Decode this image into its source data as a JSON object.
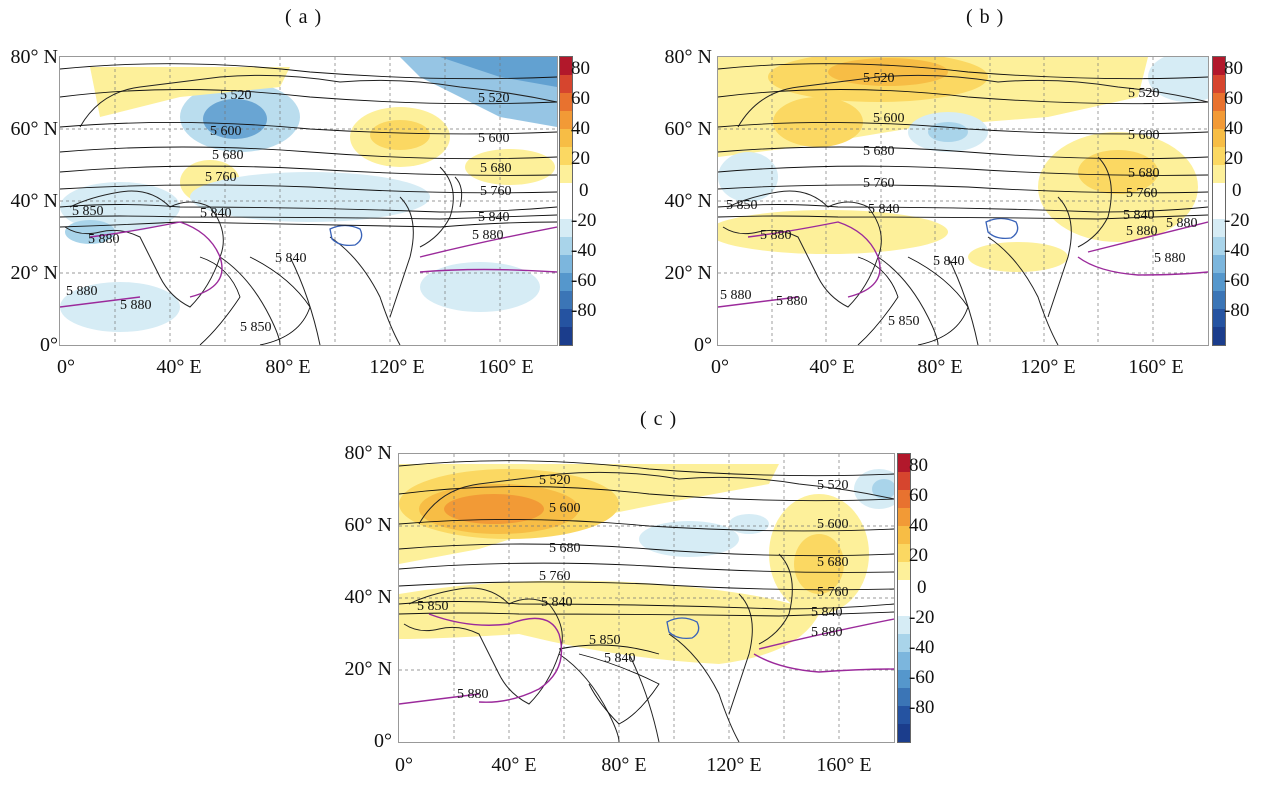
{
  "panels": [
    {
      "label": "( a )",
      "lat_labels": [
        "80° N",
        "60° N",
        "40° N",
        "20° N",
        "0°"
      ],
      "lon_labels": [
        "0°",
        "40° E",
        "80° E",
        "120° E",
        "160° E"
      ],
      "contour_labels": [
        "5 520",
        "5 520",
        "5 600",
        "5 600",
        "5 680",
        "5 680",
        "5 760",
        "5 760",
        "5 850",
        "5 840",
        "5 840",
        "5 880",
        "5 880",
        "5 840",
        "5 880",
        "5 880",
        "5 850"
      ]
    },
    {
      "label": "( b )",
      "lat_labels": [
        "80° N",
        "60° N",
        "40° N",
        "20° N",
        "0°"
      ],
      "lon_labels": [
        "0°",
        "40° E",
        "80° E",
        "120° E",
        "160° E"
      ],
      "contour_labels": [
        "5 520",
        "5 520",
        "5 600",
        "5 600",
        "5 680",
        "5 680",
        "5 760",
        "5 760",
        "5 850",
        "5 840",
        "5 840",
        "5 880",
        "5 880",
        "5 880",
        "5 840",
        "5 880",
        "5 880",
        "5 880",
        "5 850"
      ]
    },
    {
      "label": "( c )",
      "lat_labels": [
        "80° N",
        "60° N",
        "40° N",
        "20° N",
        "0°"
      ],
      "lon_labels": [
        "0°",
        "40° E",
        "80° E",
        "120° E",
        "160° E"
      ],
      "contour_labels": [
        "5 520",
        "5 520",
        "5 600",
        "5 600",
        "5 680",
        "5 680",
        "5 760",
        "5 760",
        "5 850",
        "5 840",
        "5 840",
        "5 880",
        "5 850",
        "5 840",
        "5 880"
      ]
    }
  ],
  "colorbar": {
    "ticks": [
      "80",
      "60",
      "40",
      "20",
      "0",
      "-20",
      "-40",
      "-60",
      "-80"
    ],
    "colors": [
      "#b2182b",
      "#d6452e",
      "#e8722f",
      "#f29a36",
      "#f7bd45",
      "#fbd862",
      "#fdf09a",
      "#ffffff",
      "#ffffff",
      "#d6ecf5",
      "#a9d4ea",
      "#7cb6dd",
      "#5597cc",
      "#3b75b6",
      "#2553a1",
      "#1b3d8c"
    ]
  },
  "colors": {
    "contour": "#111111",
    "contour_5880": "#9b2a9b",
    "coast": "#222222",
    "lake": "#3a63b8",
    "grid": "#777777"
  }
}
